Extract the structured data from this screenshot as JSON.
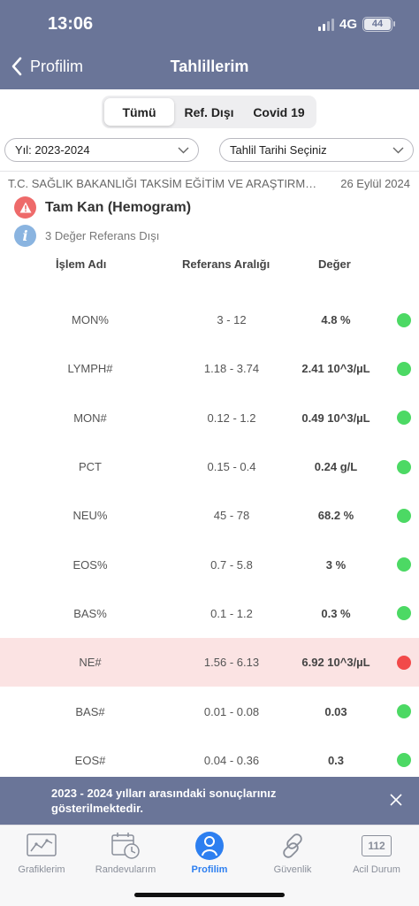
{
  "status": {
    "time": "13:06",
    "network": "4G",
    "battery": "44"
  },
  "nav": {
    "back_label": "Profilim",
    "title": "Tahlillerim"
  },
  "segments": [
    {
      "label": "Tümü",
      "active": true
    },
    {
      "label": "Ref. Dışı",
      "active": false
    },
    {
      "label": "Covid 19",
      "active": false
    }
  ],
  "filters": {
    "year": "Yıl: 2023-2024",
    "date": "Tahlil Tarihi Seçiniz"
  },
  "report": {
    "institution": "T.C. SAĞLIK BAKANLIĞI TAKSİM EĞİTİM VE ARAŞTIRMA HASTANESİ",
    "date": "26 Eylül 2024",
    "test_name": "Tam Kan (Hemogram)",
    "out_of_range_note": "3 Değer Referans Dışı"
  },
  "table": {
    "headers": {
      "name": "İşlem Adı",
      "range": "Referans Aralığı",
      "value": "Değer"
    },
    "rows": [
      {
        "name": "MON%",
        "range": "3 - 12",
        "value": "4.8 %",
        "status": "normal"
      },
      {
        "name": "LYMPH#",
        "range": "1.18 - 3.74",
        "value": "2.41 10^3/µL",
        "status": "normal"
      },
      {
        "name": "MON#",
        "range": "0.12 - 1.2",
        "value": "0.49 10^3/µL",
        "status": "normal"
      },
      {
        "name": "PCT",
        "range": "0.15 - 0.4",
        "value": "0.24 g/L",
        "status": "normal"
      },
      {
        "name": "NEU%",
        "range": "45 - 78",
        "value": "68.2 %",
        "status": "normal"
      },
      {
        "name": "EOS%",
        "range": "0.7 - 5.8",
        "value": "3 %",
        "status": "normal"
      },
      {
        "name": "BAS%",
        "range": "0.1 - 1.2",
        "value": "0.3 %",
        "status": "normal"
      },
      {
        "name": "NE#",
        "range": "1.56 - 6.13",
        "value": "6.92 10^3/µL",
        "status": "abnormal"
      },
      {
        "name": "BAS#",
        "range": "0.01 - 0.08",
        "value": "0.03",
        "status": "normal"
      },
      {
        "name": "EOS#",
        "range": "0.04 - 0.36",
        "value": "0.3",
        "status": "normal"
      }
    ]
  },
  "banner": {
    "text": "2023 - 2024 yılları arasındaki sonuçlarınız gösterilmektedir."
  },
  "tabs": [
    {
      "label": "Grafiklerim",
      "icon": "chart-icon",
      "active": false
    },
    {
      "label": "Randevularım",
      "icon": "calendar-clock-icon",
      "active": false
    },
    {
      "label": "Profilim",
      "icon": "person-icon",
      "active": true
    },
    {
      "label": "Güvenlik",
      "icon": "link-icon",
      "active": false
    },
    {
      "label": "Acil Durum",
      "icon": "emergency-112-icon",
      "active": false
    }
  ],
  "emergency_number": "112",
  "colors": {
    "normal": "#4cd964",
    "abnormal": "#f24a4a",
    "header": "#6a7598",
    "accent": "#2d7ff0"
  }
}
